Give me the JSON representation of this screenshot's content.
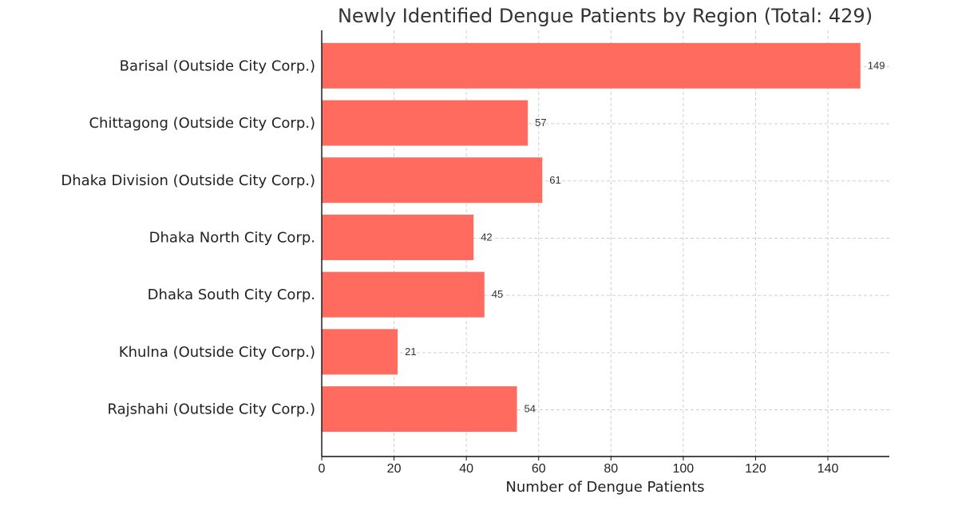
{
  "chart_data": {
    "type": "bar",
    "orientation": "horizontal",
    "title": "Newly Identified Dengue Patients by Region (Total: 429)",
    "xlabel": "Number of Dengue Patients",
    "ylabel": "",
    "categories": [
      "Barisal (Outside City Corp.)",
      "Chittagong (Outside City Corp.)",
      "Dhaka Division (Outside City Corp.)",
      "Dhaka North City Corp.",
      "Dhaka South City Corp.",
      "Khulna (Outside City Corp.)",
      "Rajshahi (Outside City Corp.)"
    ],
    "values": [
      149,
      57,
      61,
      42,
      45,
      21,
      54
    ],
    "data_labels": [
      "149",
      "57",
      "61",
      "42",
      "45",
      "21",
      "54"
    ],
    "xlim": [
      0,
      157
    ],
    "x_ticks": [
      0,
      20,
      40,
      60,
      80,
      100,
      120,
      140
    ],
    "x_tick_labels": [
      "0",
      "20",
      "40",
      "60",
      "80",
      "100",
      "120",
      "140"
    ],
    "bar_color": "#ff6b5f",
    "grid": true,
    "legend": "none"
  }
}
